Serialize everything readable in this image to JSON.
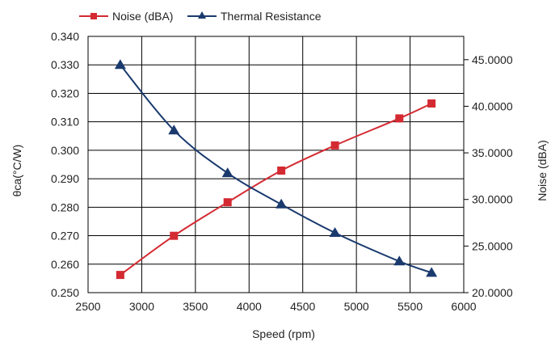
{
  "chart_data": {
    "type": "line",
    "xlabel": "Speed (rpm)",
    "ylabel_left": "θca(°C/W)",
    "ylabel_right": "Noise (dBA)",
    "xlim": [
      2500,
      6000
    ],
    "xticks": [
      "2500",
      "3000",
      "3500",
      "4000",
      "4500",
      "5000",
      "5500",
      "6000"
    ],
    "ylim_left": [
      0.25,
      0.34
    ],
    "yticks_left": [
      "0.250",
      "0.260",
      "0.270",
      "0.280",
      "0.290",
      "0.300",
      "0.310",
      "0.320",
      "0.330",
      "0.340"
    ],
    "ylim_right": [
      20,
      47.5
    ],
    "yticks_right": [
      "20.0000",
      "25.0000",
      "30.0000",
      "35.0000",
      "40.0000",
      "45.0000"
    ],
    "grid": true,
    "legend_position": "top",
    "series": [
      {
        "name": "Noise (dBA)",
        "axis": "right",
        "color": "#d42a32",
        "marker": "square",
        "x": [
          2800,
          3300,
          3800,
          4300,
          4800,
          5400,
          5700
        ],
        "y": [
          21.9,
          26.1,
          29.7,
          33.1,
          35.8,
          38.7,
          40.3
        ]
      },
      {
        "name": "Thermal Resistance",
        "axis": "left",
        "color": "#1a3a6e",
        "marker": "triangle",
        "x": [
          2800,
          3300,
          3800,
          4300,
          4800,
          5400,
          5700
        ],
        "y": [
          0.33,
          0.307,
          0.292,
          0.281,
          0.271,
          0.261,
          0.257
        ]
      }
    ]
  }
}
